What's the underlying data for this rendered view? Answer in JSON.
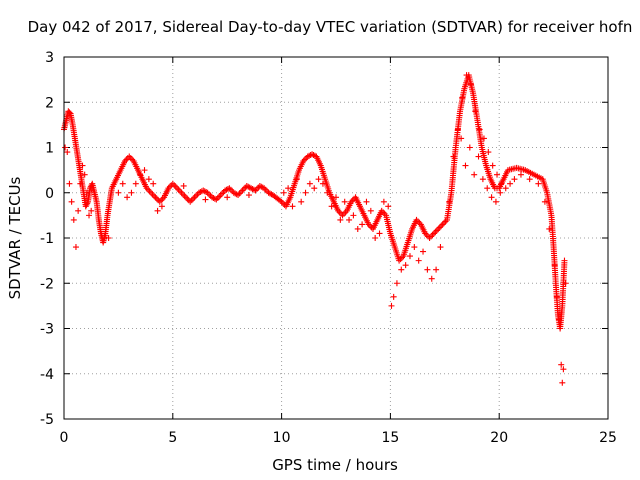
{
  "chart_data": {
    "type": "scatter",
    "title": "Day 042 of 2017, Sidereal Day-to-day VTEC variation (SDTVAR) for receiver hofn",
    "xlabel": "GPS time / hours",
    "ylabel": "SDTVAR / TECUs",
    "xlim": [
      0,
      25
    ],
    "ylim": [
      -5,
      3
    ],
    "xticks": [
      0,
      5,
      10,
      15,
      20,
      25
    ],
    "yticks": [
      -5,
      -4,
      -3,
      -2,
      -1,
      0,
      1,
      2,
      3
    ],
    "xtick_labels": [
      "0",
      "5",
      "10",
      "15",
      "20",
      "25"
    ],
    "ytick_labels": [
      "-5",
      "-4",
      "-3",
      "-2",
      "-1",
      "0",
      "1",
      "2",
      "3"
    ],
    "grid": true,
    "marker": "+",
    "color": "#ff0000",
    "series": [
      {
        "name": "SDTVAR",
        "trace": [
          [
            0.0,
            1.4
          ],
          [
            0.1,
            1.6
          ],
          [
            0.2,
            1.8
          ],
          [
            0.3,
            1.75
          ],
          [
            0.4,
            1.5
          ],
          [
            0.5,
            1.2
          ],
          [
            0.6,
            0.9
          ],
          [
            0.7,
            0.6
          ],
          [
            0.8,
            0.3
          ],
          [
            0.9,
            0.0
          ],
          [
            1.0,
            -0.3
          ],
          [
            1.1,
            -0.2
          ],
          [
            1.2,
            0.1
          ],
          [
            1.3,
            0.2
          ],
          [
            1.4,
            0.0
          ],
          [
            1.5,
            -0.2
          ],
          [
            1.6,
            -0.6
          ],
          [
            1.7,
            -0.9
          ],
          [
            1.8,
            -1.1
          ],
          [
            1.9,
            -0.9
          ],
          [
            2.0,
            -0.5
          ],
          [
            2.1,
            -0.2
          ],
          [
            2.2,
            0.1
          ],
          [
            2.4,
            0.3
          ],
          [
            2.6,
            0.5
          ],
          [
            2.8,
            0.7
          ],
          [
            3.0,
            0.8
          ],
          [
            3.2,
            0.7
          ],
          [
            3.4,
            0.5
          ],
          [
            3.6,
            0.3
          ],
          [
            3.8,
            0.1
          ],
          [
            4.0,
            0.0
          ],
          [
            4.2,
            -0.1
          ],
          [
            4.4,
            -0.2
          ],
          [
            4.6,
            -0.1
          ],
          [
            4.8,
            0.1
          ],
          [
            5.0,
            0.2
          ],
          [
            5.2,
            0.1
          ],
          [
            5.4,
            0.0
          ],
          [
            5.6,
            -0.1
          ],
          [
            5.8,
            -0.2
          ],
          [
            6.0,
            -0.1
          ],
          [
            6.2,
            0.0
          ],
          [
            6.4,
            0.05
          ],
          [
            6.6,
            0.0
          ],
          [
            6.8,
            -0.1
          ],
          [
            7.0,
            -0.15
          ],
          [
            7.2,
            -0.05
          ],
          [
            7.4,
            0.05
          ],
          [
            7.6,
            0.1
          ],
          [
            7.8,
            0.0
          ],
          [
            8.0,
            -0.05
          ],
          [
            8.2,
            0.05
          ],
          [
            8.4,
            0.15
          ],
          [
            8.6,
            0.1
          ],
          [
            8.8,
            0.05
          ],
          [
            9.0,
            0.15
          ],
          [
            9.2,
            0.1
          ],
          [
            9.4,
            0.0
          ],
          [
            9.6,
            -0.05
          ],
          [
            10.0,
            -0.2
          ],
          [
            10.2,
            -0.3
          ],
          [
            10.4,
            -0.1
          ],
          [
            10.6,
            0.2
          ],
          [
            10.8,
            0.5
          ],
          [
            11.0,
            0.7
          ],
          [
            11.2,
            0.8
          ],
          [
            11.4,
            0.85
          ],
          [
            11.6,
            0.8
          ],
          [
            11.8,
            0.6
          ],
          [
            12.0,
            0.3
          ],
          [
            12.2,
            0.0
          ],
          [
            12.4,
            -0.2
          ],
          [
            12.6,
            -0.4
          ],
          [
            12.8,
            -0.5
          ],
          [
            13.0,
            -0.4
          ],
          [
            13.2,
            -0.2
          ],
          [
            13.4,
            -0.1
          ],
          [
            13.6,
            -0.3
          ],
          [
            13.8,
            -0.5
          ],
          [
            14.0,
            -0.7
          ],
          [
            14.2,
            -0.8
          ],
          [
            14.4,
            -0.6
          ],
          [
            14.6,
            -0.4
          ],
          [
            14.8,
            -0.5
          ],
          [
            15.0,
            -0.9
          ],
          [
            15.2,
            -1.2
          ],
          [
            15.4,
            -1.5
          ],
          [
            15.6,
            -1.4
          ],
          [
            15.8,
            -1.1
          ],
          [
            16.0,
            -0.8
          ],
          [
            16.2,
            -0.6
          ],
          [
            16.4,
            -0.7
          ],
          [
            16.6,
            -0.9
          ],
          [
            16.8,
            -1.0
          ],
          [
            17.0,
            -0.9
          ],
          [
            17.2,
            -0.8
          ],
          [
            17.4,
            -0.7
          ],
          [
            17.6,
            -0.6
          ],
          [
            17.8,
            0.0
          ],
          [
            18.0,
            1.0
          ],
          [
            18.2,
            1.8
          ],
          [
            18.4,
            2.3
          ],
          [
            18.6,
            2.6
          ],
          [
            18.8,
            2.2
          ],
          [
            19.0,
            1.6
          ],
          [
            19.2,
            1.0
          ],
          [
            19.4,
            0.6
          ],
          [
            19.6,
            0.3
          ],
          [
            19.8,
            0.1
          ],
          [
            20.0,
            0.1
          ],
          [
            20.2,
            0.3
          ],
          [
            20.4,
            0.5
          ],
          [
            20.8,
            0.55
          ],
          [
            21.2,
            0.5
          ],
          [
            21.6,
            0.4
          ],
          [
            22.0,
            0.3
          ],
          [
            22.2,
            0.0
          ],
          [
            22.4,
            -0.5
          ],
          [
            22.5,
            -1.2
          ],
          [
            22.6,
            -2.0
          ],
          [
            22.7,
            -2.7
          ],
          [
            22.8,
            -3.0
          ],
          [
            22.9,
            -2.5
          ],
          [
            23.0,
            -1.5
          ]
        ],
        "cluster": [
          [
            0.05,
            1.0
          ],
          [
            0.15,
            0.9
          ],
          [
            0.25,
            0.2
          ],
          [
            0.35,
            -0.2
          ],
          [
            0.45,
            -0.6
          ],
          [
            0.55,
            -1.2
          ],
          [
            0.65,
            -0.4
          ],
          [
            0.75,
            0.2
          ],
          [
            0.85,
            0.6
          ],
          [
            0.95,
            0.4
          ],
          [
            1.05,
            0.0
          ],
          [
            1.15,
            -0.5
          ],
          [
            1.25,
            -0.4
          ],
          [
            2.05,
            -1.0
          ],
          [
            2.5,
            0.0
          ],
          [
            2.7,
            0.2
          ],
          [
            2.9,
            -0.1
          ],
          [
            3.1,
            0.0
          ],
          [
            3.3,
            0.2
          ],
          [
            3.5,
            0.4
          ],
          [
            3.7,
            0.5
          ],
          [
            3.9,
            0.3
          ],
          [
            4.1,
            0.2
          ],
          [
            4.3,
            -0.4
          ],
          [
            4.5,
            -0.3
          ],
          [
            5.5,
            0.15
          ],
          [
            6.5,
            -0.15
          ],
          [
            7.5,
            -0.1
          ],
          [
            8.5,
            -0.05
          ],
          [
            10.1,
            0.0
          ],
          [
            10.3,
            0.1
          ],
          [
            10.5,
            -0.3
          ],
          [
            10.7,
            0.3
          ],
          [
            10.9,
            -0.2
          ],
          [
            11.1,
            0.0
          ],
          [
            11.3,
            0.2
          ],
          [
            11.5,
            0.1
          ],
          [
            11.7,
            0.3
          ],
          [
            11.9,
            0.2
          ],
          [
            12.1,
            0.0
          ],
          [
            12.3,
            -0.3
          ],
          [
            12.5,
            -0.1
          ],
          [
            12.7,
            -0.6
          ],
          [
            12.9,
            -0.2
          ],
          [
            13.1,
            -0.6
          ],
          [
            13.3,
            -0.5
          ],
          [
            13.5,
            -0.8
          ],
          [
            13.7,
            -0.7
          ],
          [
            13.9,
            -0.2
          ],
          [
            14.1,
            -0.4
          ],
          [
            14.3,
            -1.0
          ],
          [
            14.5,
            -0.9
          ],
          [
            14.7,
            -0.2
          ],
          [
            14.9,
            -0.3
          ],
          [
            15.05,
            -2.5
          ],
          [
            15.15,
            -2.3
          ],
          [
            15.3,
            -2.0
          ],
          [
            15.5,
            -1.7
          ],
          [
            15.7,
            -1.6
          ],
          [
            15.9,
            -1.4
          ],
          [
            16.1,
            -1.2
          ],
          [
            16.3,
            -1.5
          ],
          [
            16.5,
            -1.3
          ],
          [
            16.7,
            -1.7
          ],
          [
            16.9,
            -1.9
          ],
          [
            17.1,
            -1.7
          ],
          [
            17.3,
            -1.2
          ],
          [
            17.7,
            -0.2
          ],
          [
            17.9,
            0.8
          ],
          [
            18.1,
            1.4
          ],
          [
            18.3,
            2.1
          ],
          [
            18.5,
            2.6
          ],
          [
            18.7,
            2.4
          ],
          [
            18.9,
            1.8
          ],
          [
            19.1,
            1.4
          ],
          [
            19.3,
            1.2
          ],
          [
            19.5,
            0.9
          ],
          [
            19.7,
            0.6
          ],
          [
            19.9,
            0.4
          ],
          [
            20.1,
            0.2
          ],
          [
            20.3,
            0.1
          ],
          [
            20.5,
            0.2
          ],
          [
            20.7,
            0.3
          ],
          [
            21.0,
            0.4
          ],
          [
            21.4,
            0.3
          ],
          [
            21.8,
            0.2
          ],
          [
            22.1,
            -0.2
          ],
          [
            22.3,
            -0.8
          ],
          [
            22.55,
            -1.6
          ],
          [
            22.65,
            -2.3
          ],
          [
            22.75,
            -2.8
          ],
          [
            22.85,
            -3.8
          ],
          [
            22.9,
            -4.2
          ],
          [
            22.95,
            -3.9
          ],
          [
            23.05,
            -2.0
          ],
          [
            18.25,
            1.2
          ],
          [
            18.45,
            0.6
          ],
          [
            18.65,
            1.0
          ],
          [
            18.85,
            0.4
          ],
          [
            19.05,
            0.8
          ],
          [
            19.25,
            0.3
          ],
          [
            19.45,
            0.1
          ],
          [
            19.65,
            -0.1
          ],
          [
            19.85,
            -0.2
          ],
          [
            20.05,
            0.0
          ]
        ]
      }
    ]
  }
}
